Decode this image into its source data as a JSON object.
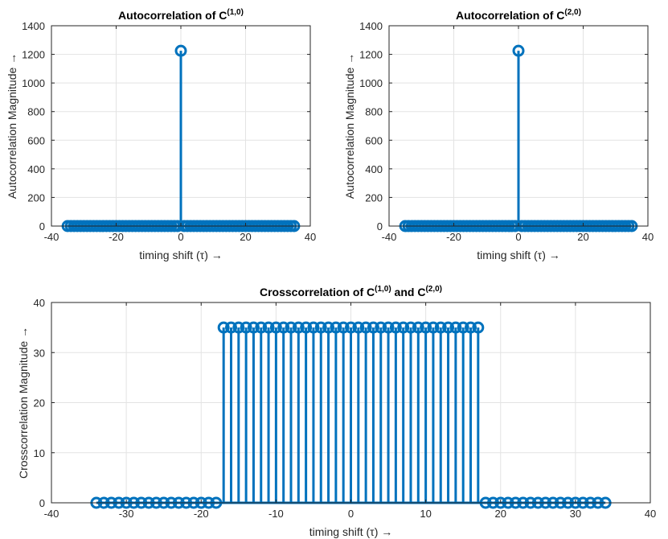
{
  "figure": {
    "description_free": true
  },
  "chart_data": [
    {
      "type": "stem",
      "title": "Autocorrelation of C",
      "title_superscript": "(1,0)",
      "xlabel": "timing shift (τ) →",
      "ylabel": "Autocorrelation Magnitude →",
      "xlim": [
        -40,
        40
      ],
      "ylim": [
        0,
        1400
      ],
      "xticks": [
        -40,
        -20,
        0,
        20,
        40
      ],
      "yticks": [
        0,
        200,
        400,
        600,
        800,
        1000,
        1200,
        1400
      ],
      "grid": true,
      "color": "#0072BD",
      "x_start": -35,
      "x_end": 35,
      "y_default": 0,
      "peaks": [
        {
          "x": 0,
          "y": 1225
        }
      ]
    },
    {
      "type": "stem",
      "title": "Autocorrelation of C",
      "title_superscript": "(2,0)",
      "xlabel": "timing shift (τ) →",
      "ylabel": "Autocorrelation Magnitude →",
      "xlim": [
        -40,
        40
      ],
      "ylim": [
        0,
        1400
      ],
      "xticks": [
        -40,
        -20,
        0,
        20,
        40
      ],
      "yticks": [
        0,
        200,
        400,
        600,
        800,
        1000,
        1200,
        1400
      ],
      "grid": true,
      "color": "#0072BD",
      "x_start": -35,
      "x_end": 35,
      "y_default": 0,
      "peaks": [
        {
          "x": 0,
          "y": 1225
        }
      ]
    },
    {
      "type": "stem",
      "title": "Crosscorrelation of C",
      "title_superscript": "(1,0)",
      "title_mid": " and C",
      "title_superscript2": "(2,0)",
      "xlabel": "timing shift (τ) →",
      "ylabel": "Crosscorrelation Magnitude →",
      "xlim": [
        -40,
        40
      ],
      "ylim": [
        0,
        40
      ],
      "xticks": [
        -40,
        -30,
        -20,
        -10,
        0,
        10,
        20,
        30,
        40
      ],
      "yticks": [
        0,
        10,
        20,
        30,
        40
      ],
      "grid": true,
      "color": "#0072BD",
      "x_start": -34,
      "x_end": 34,
      "y_default": 0,
      "plateau": {
        "x_from": -17,
        "x_to": 17,
        "y": 35
      }
    }
  ]
}
